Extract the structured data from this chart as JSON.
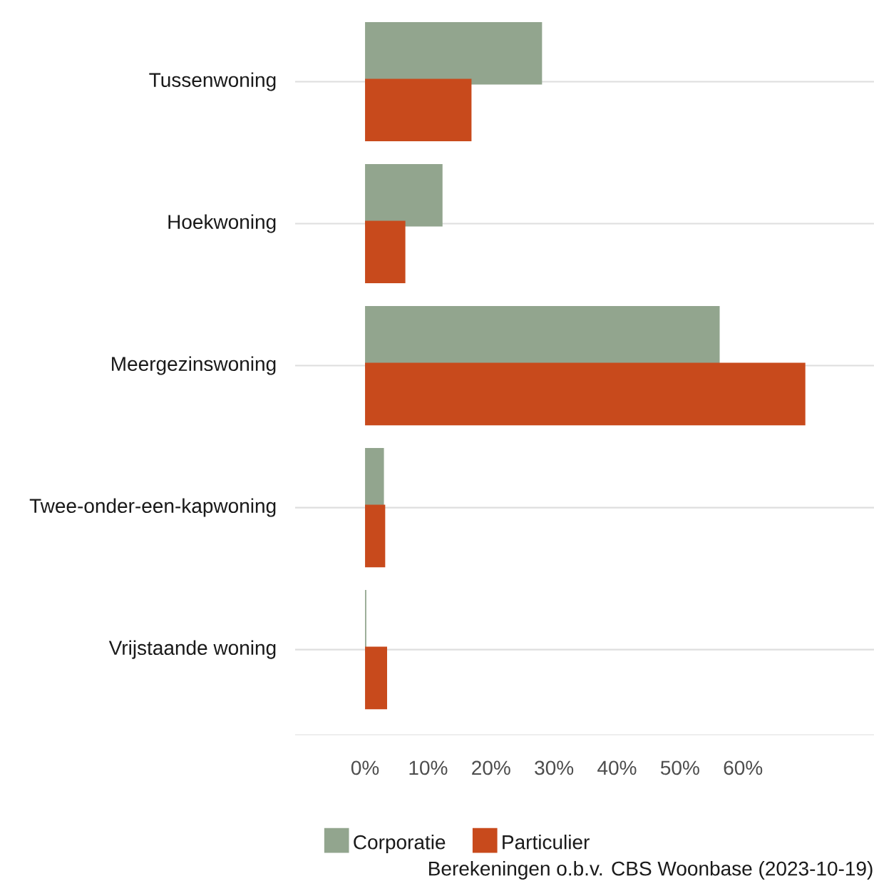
{
  "chart_data": {
    "type": "bar",
    "orientation": "horizontal",
    "categories": [
      "Tussenwoning",
      "Hoekwoning",
      "Meergezinswoning",
      "Twee-onder-een-kapwoning",
      "Vrijstaande woning"
    ],
    "series": [
      {
        "name": "Corporatie",
        "color": "#92a58e",
        "values": [
          28.1,
          12.3,
          56.3,
          3.0,
          0.2
        ]
      },
      {
        "name": "Particulier",
        "color": "#c84a1c",
        "values": [
          16.9,
          6.4,
          69.9,
          3.2,
          3.5
        ]
      }
    ],
    "xlim": [
      -11.1,
      80.8
    ],
    "xticks": [
      {
        "value": 0,
        "label": "0%"
      },
      {
        "value": 10,
        "label": "10%"
      },
      {
        "value": 20,
        "label": "20%"
      },
      {
        "value": 30,
        "label": "30%"
      },
      {
        "value": 40,
        "label": "40%"
      },
      {
        "value": 50,
        "label": "50%"
      },
      {
        "value": 60,
        "label": "60%"
      }
    ],
    "grid": "y",
    "legend": "bottom",
    "annotations": [
      "Berekeningen o.b.v. CBS Woonbase (2023-10-19)"
    ]
  }
}
